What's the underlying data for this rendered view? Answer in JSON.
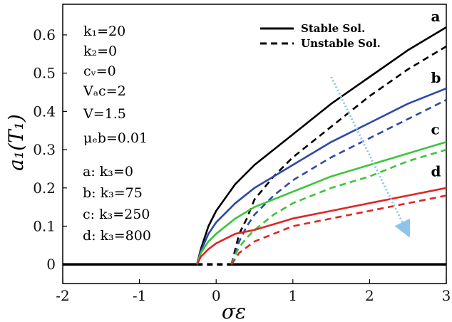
{
  "chart_data": {
    "type": "line",
    "xlabel": "σε",
    "ylabel": "a₁(T₁)",
    "xlim": [
      -2,
      3
    ],
    "ylim": [
      -0.05,
      0.68
    ],
    "x_ticks": [
      -2,
      -1,
      0,
      1,
      2,
      3
    ],
    "y_ticks": [
      0,
      0.1,
      0.2,
      0.3,
      0.4,
      0.5,
      0.6
    ],
    "grid": false,
    "legend": {
      "placement": "top-right",
      "entries": [
        {
          "label": "Stable Sol.",
          "style": "solid"
        },
        {
          "label": "Unstable Sol.",
          "style": "dashed"
        }
      ]
    },
    "parameters": [
      "k₁=20",
      "k₂=0",
      "cᵥ=0",
      "Vₐc=2",
      "V=1.5",
      "μₑb=0.01"
    ],
    "cases": [
      "a: k₃=0",
      "b: k₃=75",
      "c: k₃=250",
      "d: k₃=800"
    ],
    "trivial": {
      "x": [
        -2,
        3
      ],
      "y": [
        0,
        0
      ],
      "stable_x": [
        [
          -2,
          -0.25
        ],
        [
          0.2,
          3
        ]
      ],
      "unstable_x": [
        [
          -0.25,
          0.2
        ]
      ],
      "color": "#000000"
    },
    "series": [
      {
        "name": "a",
        "color": "#000000",
        "label_pos": [
          2.8,
          0.635
        ],
        "stable_x": [
          -0.25,
          -0.2,
          -0.1,
          0,
          0.25,
          0.5,
          1,
          1.5,
          2,
          2.5,
          3
        ],
        "stable_y": [
          0,
          0.04,
          0.1,
          0.14,
          0.21,
          0.26,
          0.34,
          0.42,
          0.49,
          0.56,
          0.62
        ],
        "unstable_x": [
          0.2,
          0.25,
          0.3,
          0.4,
          0.5,
          0.75,
          1,
          1.5,
          2,
          2.5,
          3
        ],
        "unstable_y": [
          0,
          0.04,
          0.08,
          0.12,
          0.17,
          0.23,
          0.28,
          0.36,
          0.44,
          0.51,
          0.57
        ]
      },
      {
        "name": "b",
        "color": "#2e49a6",
        "label_pos": [
          2.8,
          0.475
        ],
        "stable_x": [
          -0.25,
          -0.2,
          -0.1,
          0,
          0.25,
          0.5,
          1,
          1.5,
          2,
          2.5,
          3
        ],
        "stable_y": [
          0,
          0.035,
          0.08,
          0.11,
          0.16,
          0.2,
          0.26,
          0.32,
          0.37,
          0.42,
          0.46
        ],
        "unstable_x": [
          0.2,
          0.25,
          0.3,
          0.4,
          0.5,
          0.75,
          1,
          1.5,
          2,
          2.5,
          3
        ],
        "unstable_y": [
          0,
          0.03,
          0.06,
          0.1,
          0.13,
          0.18,
          0.22,
          0.28,
          0.33,
          0.38,
          0.43
        ]
      },
      {
        "name": "c",
        "color": "#3cc43c",
        "label_pos": [
          2.8,
          0.34
        ],
        "stable_x": [
          -0.25,
          -0.2,
          -0.1,
          0,
          0.25,
          0.5,
          1,
          1.5,
          2,
          2.5,
          3
        ],
        "stable_y": [
          0,
          0.03,
          0.06,
          0.08,
          0.12,
          0.15,
          0.19,
          0.23,
          0.26,
          0.29,
          0.32
        ],
        "unstable_x": [
          0.2,
          0.25,
          0.3,
          0.4,
          0.5,
          0.75,
          1,
          1.5,
          2,
          2.5,
          3
        ],
        "unstable_y": [
          0,
          0.025,
          0.045,
          0.07,
          0.09,
          0.13,
          0.16,
          0.2,
          0.23,
          0.27,
          0.3
        ]
      },
      {
        "name": "d",
        "color": "#e02525",
        "label_pos": [
          2.8,
          0.23
        ],
        "stable_x": [
          -0.25,
          -0.2,
          -0.1,
          0,
          0.25,
          0.5,
          1,
          1.5,
          2,
          2.5,
          3
        ],
        "stable_y": [
          0,
          0.02,
          0.04,
          0.055,
          0.08,
          0.09,
          0.12,
          0.14,
          0.16,
          0.18,
          0.2
        ],
        "unstable_x": [
          0.2,
          0.25,
          0.3,
          0.4,
          0.5,
          0.75,
          1,
          1.5,
          2,
          2.5,
          3
        ],
        "unstable_y": [
          0,
          0.015,
          0.03,
          0.045,
          0.06,
          0.08,
          0.1,
          0.12,
          0.14,
          0.16,
          0.18
        ]
      }
    ],
    "arrow": {
      "from": [
        1.5,
        0.49
      ],
      "to": [
        2.5,
        0.08
      ],
      "color": "#8fc3ea"
    }
  }
}
